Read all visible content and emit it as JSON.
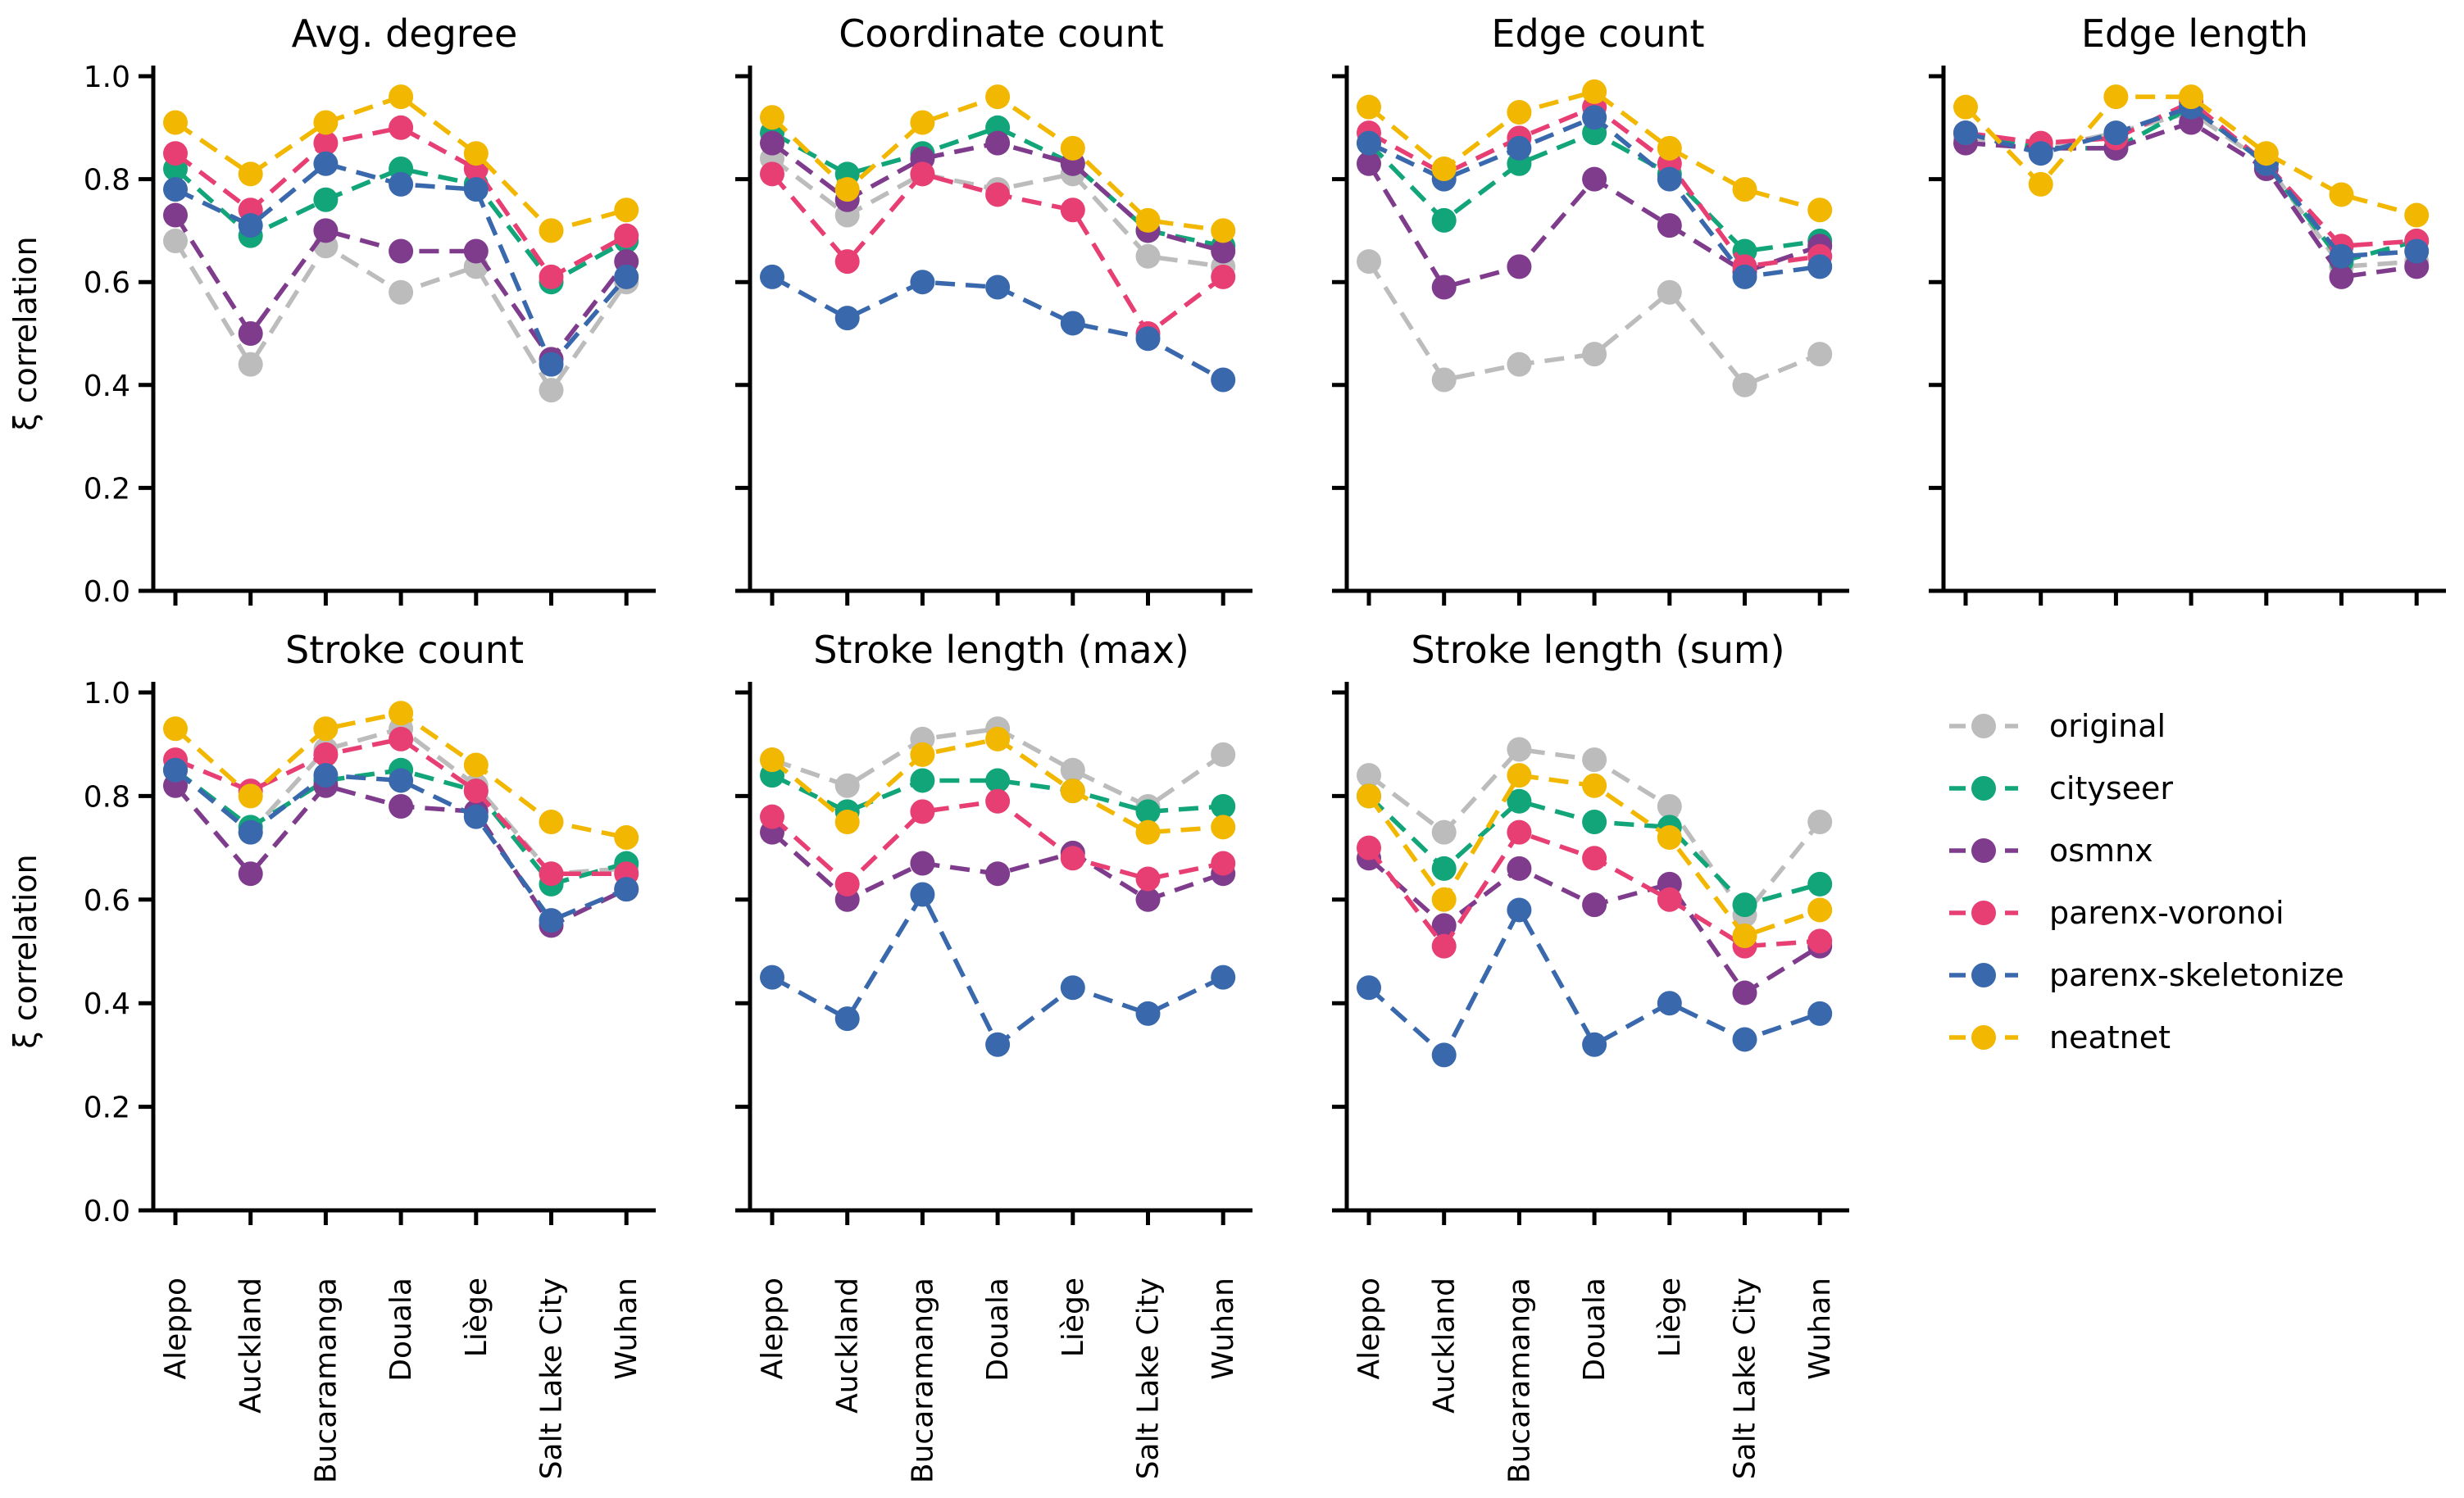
{
  "figure": {
    "background": "#ffffff",
    "ylabel": "ξ correlation",
    "ytick_labels": [
      "0.0",
      "0.2",
      "0.4",
      "0.6",
      "0.8",
      "1.0"
    ]
  },
  "chart_data": {
    "type": "line",
    "grid": "2 rows x 4 cols, legend in last cell",
    "ylabel": "ξ correlation",
    "ylim": [
      0.0,
      1.0
    ],
    "yticks": [
      0.0,
      0.2,
      0.4,
      0.6,
      0.8,
      1.0
    ],
    "grid_lines": "off",
    "marker": "circle",
    "line_style": "dashed",
    "categories": [
      "Aleppo",
      "Auckland",
      "Bucaramanga",
      "Douala",
      "Liège",
      "Salt Lake City",
      "Wuhan"
    ],
    "series_colors": {
      "original": "#bcbcbc",
      "cityseer": "#11a579",
      "osmnx": "#7f3c8d",
      "parenx-voronoi": "#e73f74",
      "parenx-skeletonize": "#3969ac",
      "neatnet": "#f2b701"
    },
    "panels": [
      {
        "title": "Avg. degree",
        "row": 0,
        "col": 0,
        "series": [
          {
            "name": "original",
            "values": [
              0.68,
              0.44,
              0.67,
              0.58,
              0.63,
              0.39,
              0.6
            ]
          },
          {
            "name": "cityseer",
            "values": [
              0.82,
              0.69,
              0.76,
              0.82,
              0.79,
              0.6,
              0.68
            ]
          },
          {
            "name": "osmnx",
            "values": [
              0.73,
              0.5,
              0.7,
              0.66,
              0.66,
              0.45,
              0.64
            ]
          },
          {
            "name": "parenx-voronoi",
            "values": [
              0.85,
              0.74,
              0.87,
              0.9,
              0.82,
              0.61,
              0.69
            ]
          },
          {
            "name": "parenx-skeletonize",
            "values": [
              0.78,
              0.71,
              0.83,
              0.79,
              0.78,
              0.44,
              0.61
            ]
          },
          {
            "name": "neatnet",
            "values": [
              0.91,
              0.81,
              0.91,
              0.96,
              0.85,
              0.7,
              0.74
            ]
          }
        ]
      },
      {
        "title": "Coordinate count",
        "row": 0,
        "col": 1,
        "series": [
          {
            "name": "original",
            "values": [
              0.84,
              0.73,
              0.81,
              0.78,
              0.81,
              0.65,
              0.63
            ]
          },
          {
            "name": "cityseer",
            "values": [
              0.89,
              0.81,
              0.85,
              0.9,
              0.83,
              0.7,
              0.67
            ]
          },
          {
            "name": "osmnx",
            "values": [
              0.87,
              0.76,
              0.84,
              0.87,
              0.83,
              0.7,
              0.66
            ]
          },
          {
            "name": "parenx-voronoi",
            "values": [
              0.81,
              0.64,
              0.81,
              0.77,
              0.74,
              0.5,
              0.61
            ]
          },
          {
            "name": "parenx-skeletonize",
            "values": [
              0.61,
              0.53,
              0.6,
              0.59,
              0.52,
              0.49,
              0.41
            ]
          },
          {
            "name": "neatnet",
            "values": [
              0.92,
              0.78,
              0.91,
              0.96,
              0.86,
              0.72,
              0.7
            ]
          }
        ]
      },
      {
        "title": "Edge count",
        "row": 0,
        "col": 2,
        "series": [
          {
            "name": "original",
            "values": [
              0.64,
              0.41,
              0.44,
              0.46,
              0.58,
              0.4,
              0.46
            ]
          },
          {
            "name": "cityseer",
            "values": [
              0.87,
              0.72,
              0.83,
              0.89,
              0.81,
              0.66,
              0.68
            ]
          },
          {
            "name": "osmnx",
            "values": [
              0.83,
              0.59,
              0.63,
              0.8,
              0.71,
              0.62,
              0.67
            ]
          },
          {
            "name": "parenx-voronoi",
            "values": [
              0.89,
              0.81,
              0.88,
              0.94,
              0.83,
              0.63,
              0.65
            ]
          },
          {
            "name": "parenx-skeletonize",
            "values": [
              0.87,
              0.8,
              0.86,
              0.92,
              0.8,
              0.61,
              0.63
            ]
          },
          {
            "name": "neatnet",
            "values": [
              0.94,
              0.82,
              0.93,
              0.97,
              0.86,
              0.78,
              0.74
            ]
          }
        ]
      },
      {
        "title": "Edge length",
        "row": 0,
        "col": 3,
        "series": [
          {
            "name": "original",
            "values": [
              0.88,
              0.86,
              0.89,
              0.93,
              0.83,
              0.63,
              0.64
            ]
          },
          {
            "name": "cityseer",
            "values": [
              0.89,
              0.86,
              0.86,
              0.94,
              0.83,
              0.64,
              0.68
            ]
          },
          {
            "name": "osmnx",
            "values": [
              0.87,
              0.86,
              0.86,
              0.91,
              0.82,
              0.61,
              0.63
            ]
          },
          {
            "name": "parenx-voronoi",
            "values": [
              0.89,
              0.87,
              0.88,
              0.95,
              0.83,
              0.67,
              0.68
            ]
          },
          {
            "name": "parenx-skeletonize",
            "values": [
              0.89,
              0.85,
              0.89,
              0.94,
              0.83,
              0.65,
              0.66
            ]
          },
          {
            "name": "neatnet",
            "values": [
              0.94,
              0.79,
              0.96,
              0.96,
              0.85,
              0.77,
              0.73
            ]
          }
        ]
      },
      {
        "title": "Stroke count",
        "row": 1,
        "col": 0,
        "series": [
          {
            "name": "original",
            "values": [
              0.85,
              0.73,
              0.89,
              0.93,
              0.82,
              0.65,
              0.66
            ]
          },
          {
            "name": "cityseer",
            "values": [
              0.85,
              0.74,
              0.83,
              0.85,
              0.81,
              0.63,
              0.67
            ]
          },
          {
            "name": "osmnx",
            "values": [
              0.82,
              0.65,
              0.82,
              0.78,
              0.77,
              0.55,
              0.62
            ]
          },
          {
            "name": "parenx-voronoi",
            "values": [
              0.87,
              0.81,
              0.88,
              0.91,
              0.81,
              0.65,
              0.65
            ]
          },
          {
            "name": "parenx-skeletonize",
            "values": [
              0.85,
              0.73,
              0.84,
              0.83,
              0.76,
              0.56,
              0.62
            ]
          },
          {
            "name": "neatnet",
            "values": [
              0.93,
              0.8,
              0.93,
              0.96,
              0.86,
              0.75,
              0.72
            ]
          }
        ]
      },
      {
        "title": "Stroke length (max)",
        "row": 1,
        "col": 1,
        "series": [
          {
            "name": "original",
            "values": [
              0.87,
              0.82,
              0.91,
              0.93,
              0.85,
              0.78,
              0.88
            ]
          },
          {
            "name": "cityseer",
            "values": [
              0.84,
              0.77,
              0.83,
              0.83,
              0.81,
              0.77,
              0.78
            ]
          },
          {
            "name": "osmnx",
            "values": [
              0.73,
              0.6,
              0.67,
              0.65,
              0.69,
              0.6,
              0.65
            ]
          },
          {
            "name": "parenx-voronoi",
            "values": [
              0.76,
              0.63,
              0.77,
              0.79,
              0.68,
              0.64,
              0.67
            ]
          },
          {
            "name": "parenx-skeletonize",
            "values": [
              0.45,
              0.37,
              0.61,
              0.32,
              0.43,
              0.38,
              0.45
            ]
          },
          {
            "name": "neatnet",
            "values": [
              0.87,
              0.75,
              0.88,
              0.91,
              0.81,
              0.73,
              0.74
            ]
          }
        ]
      },
      {
        "title": "Stroke length (sum)",
        "row": 1,
        "col": 2,
        "series": [
          {
            "name": "original",
            "values": [
              0.84,
              0.73,
              0.89,
              0.87,
              0.78,
              0.57,
              0.75
            ]
          },
          {
            "name": "cityseer",
            "values": [
              0.8,
              0.66,
              0.79,
              0.75,
              0.74,
              0.59,
              0.63
            ]
          },
          {
            "name": "osmnx",
            "values": [
              0.68,
              0.55,
              0.66,
              0.59,
              0.63,
              0.42,
              0.51
            ]
          },
          {
            "name": "parenx-voronoi",
            "values": [
              0.7,
              0.51,
              0.73,
              0.68,
              0.6,
              0.51,
              0.52
            ]
          },
          {
            "name": "parenx-skeletonize",
            "values": [
              0.43,
              0.3,
              0.58,
              0.32,
              0.4,
              0.33,
              0.38
            ]
          },
          {
            "name": "neatnet",
            "values": [
              0.8,
              0.6,
              0.84,
              0.82,
              0.72,
              0.53,
              0.58
            ]
          }
        ]
      }
    ],
    "legend": {
      "position": "bottom-right cell",
      "entries": [
        "original",
        "cityseer",
        "osmnx",
        "parenx-voronoi",
        "parenx-skeletonize",
        "neatnet"
      ]
    }
  }
}
